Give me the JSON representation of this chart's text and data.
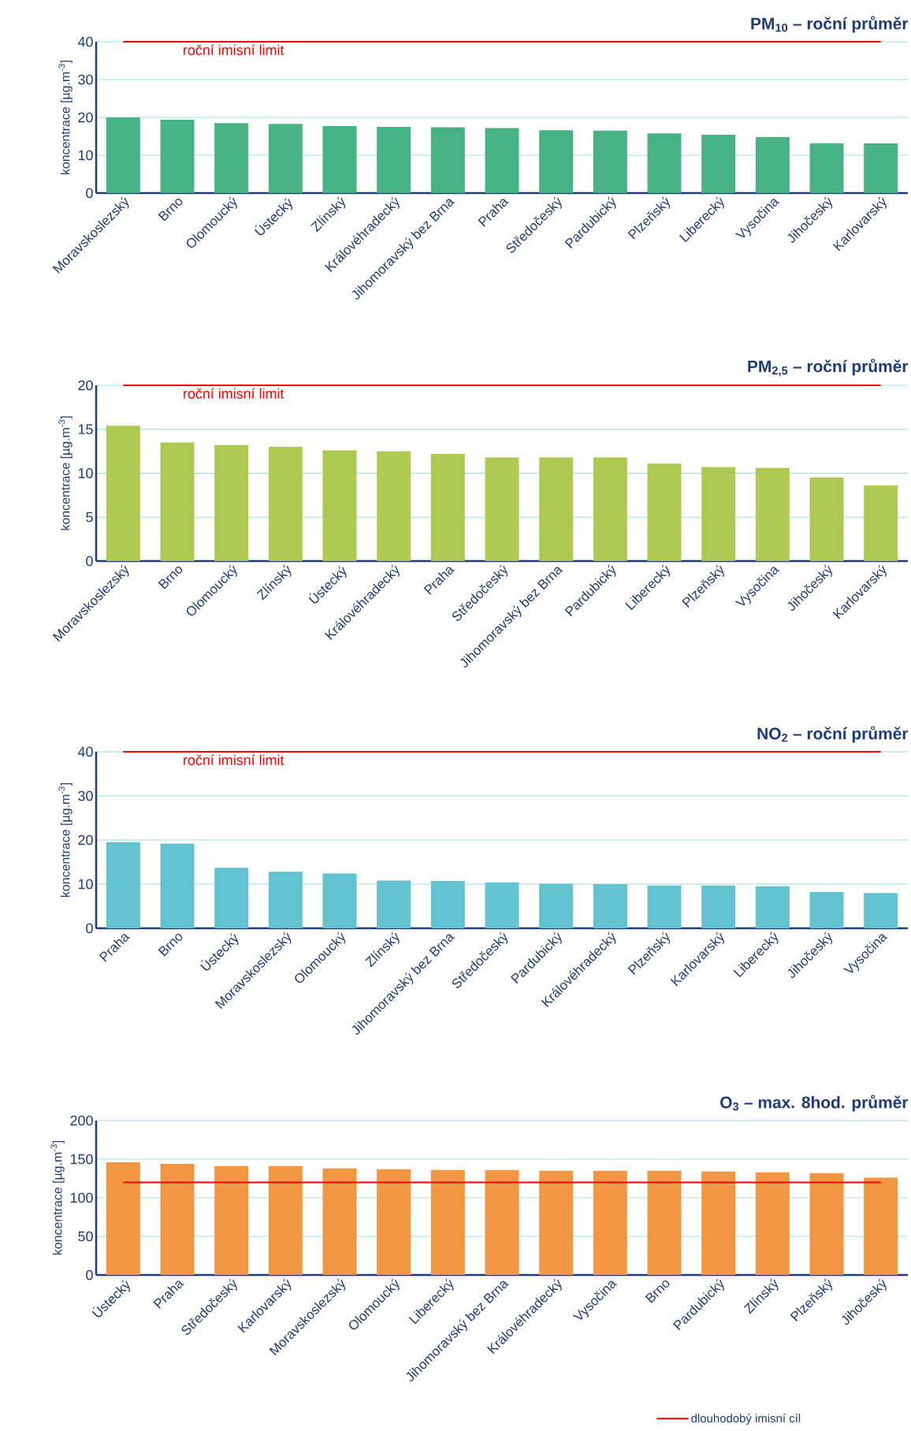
{
  "chart_data": [
    {
      "type": "bar",
      "title": "PM$_{10}$ – roční průměr",
      "ylabel": "koncentrace [µg.m$^{-3}$]",
      "categories": [
        "Moravskoslezský",
        "Brno",
        "Olomoucký",
        "Ústecký",
        "Zlínský",
        "Královéhradecký",
        "Jihomoravský bez Brna",
        "Praha",
        "Středočeský",
        "Pardubický",
        "Plzeňský",
        "Liberecký",
        "Vysočina",
        "Jihočeský",
        "Karlovarský"
      ],
      "values": [
        20.0,
        19.4,
        18.5,
        18.3,
        17.7,
        17.5,
        17.4,
        17.2,
        16.6,
        16.5,
        15.8,
        15.4,
        14.8,
        13.2,
        13.1
      ],
      "color": "#47b384",
      "ylim": [
        0,
        40
      ],
      "yticks": [
        0,
        10,
        20,
        30,
        40
      ],
      "grid": "y",
      "ref_lines": [
        {
          "axis": "y",
          "value": 40,
          "label": "roční imisní limit",
          "color": "#ff0000"
        }
      ]
    },
    {
      "type": "bar",
      "title": "PM$_{2,5}$ – roční průměr",
      "ylabel": "koncentrace [µg.m$^{-3}$]",
      "categories": [
        "Moravskoslezský",
        "Brno",
        "Olomoucký",
        "Zlínský",
        "Ústecký",
        "Královéhradecký",
        "Praha",
        "Středočeský",
        "Jihomoravský bez Brna",
        "Pardubický",
        "Liberecký",
        "Plzeňský",
        "Vysočina",
        "Jihočeský",
        "Karlovarský"
      ],
      "values": [
        15.4,
        13.5,
        13.2,
        13.0,
        12.6,
        12.5,
        12.2,
        11.8,
        11.8,
        11.8,
        11.1,
        10.7,
        10.6,
        9.5,
        8.6
      ],
      "color": "#adc952",
      "ylim": [
        0,
        20
      ],
      "yticks": [
        0,
        5,
        10,
        15,
        20
      ],
      "grid": "y",
      "ref_lines": [
        {
          "axis": "y",
          "value": 20,
          "label": "roční imisní limit",
          "color": "#ff0000"
        }
      ]
    },
    {
      "type": "bar",
      "title": "NO$_{2}$ – roční průměr",
      "ylabel": "koncentrace [µg.m$^{-3}$]",
      "categories": [
        "Praha",
        "Brno",
        "Ústecký",
        "Moravskoslezský",
        "Olomoucký",
        "Zlínský",
        "Jihomoravský bez Brna",
        "Středočeský",
        "Pardubický",
        "Královéhradecký",
        "Plzeňský",
        "Karlovarský",
        "Liberecký",
        "Jihočeský",
        "Vysočina"
      ],
      "values": [
        19.5,
        19.2,
        13.7,
        12.8,
        12.4,
        10.8,
        10.7,
        10.4,
        10.1,
        10.0,
        9.7,
        9.7,
        9.5,
        8.2,
        8.0
      ],
      "color": "#62c2cf",
      "ylim": [
        0,
        40
      ],
      "yticks": [
        0,
        10,
        20,
        30,
        40
      ],
      "grid": "y",
      "ref_lines": [
        {
          "axis": "y",
          "value": 40,
          "label": "roční imisní limit",
          "color": "#ff0000"
        }
      ]
    },
    {
      "type": "bar",
      "title": "O$_{3}$ – max. 8hod. průměr",
      "ylabel": "koncentrace [µg.m$^{-3}$]",
      "categories": [
        "Ústecký",
        "Praha",
        "Středočeský",
        "Karlovarský",
        "Moravskoslezský",
        "Olomoucký",
        "Liberecký",
        "Jihomoravský bez Brna",
        "Královéhradecký",
        "Vysočina",
        "Brno",
        "Pardubický",
        "Zlínský",
        "Plzeňský",
        "Jihočeský"
      ],
      "values": [
        146,
        144,
        141,
        141,
        138,
        137,
        136,
        136,
        135,
        135,
        135,
        134,
        133,
        132,
        126
      ],
      "color": "#f39642",
      "ylim": [
        0,
        200
      ],
      "yticks": [
        0,
        50,
        100,
        150,
        200
      ],
      "grid": "y",
      "legend": "bottom",
      "ref_lines": [
        {
          "axis": "y",
          "value": 120,
          "label": "dlouhodobý imisní cíl",
          "color": "#ff0000"
        }
      ]
    }
  ]
}
